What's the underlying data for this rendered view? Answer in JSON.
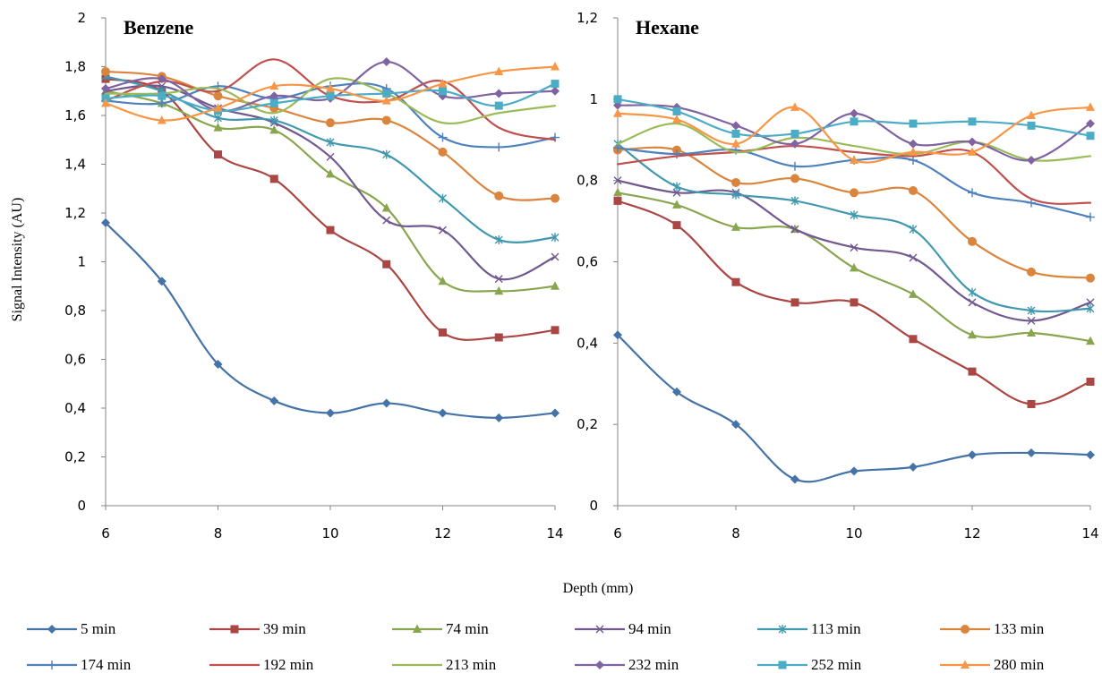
{
  "chart_data": {
    "type": "line",
    "shared": {
      "xlabel": "Depth (mm)",
      "ylabel": "Signal Intensity (AU)",
      "xlim": [
        6,
        14
      ],
      "x_ticks": [
        "6",
        "8",
        "10",
        "12",
        "14"
      ],
      "x": [
        6,
        7,
        8,
        9,
        10,
        11,
        12,
        13,
        14
      ],
      "legend_position": "bottom",
      "smooth_lines": true,
      "grid": false
    },
    "series_styles": [
      {
        "name": "5 min",
        "color": "#4572A7",
        "marker": "diamond"
      },
      {
        "name": "39 min",
        "color": "#AA4643",
        "marker": "square"
      },
      {
        "name": "74 min",
        "color": "#89A54E",
        "marker": "triangle"
      },
      {
        "name": "94 min",
        "color": "#71588F",
        "marker": "x"
      },
      {
        "name": "113 min",
        "color": "#4198AF",
        "marker": "star"
      },
      {
        "name": "133 min",
        "color": "#DB843D",
        "marker": "circle"
      },
      {
        "name": "174 min",
        "color": "#4F81BD",
        "marker": "plus"
      },
      {
        "name": "192 min",
        "color": "#C0504D",
        "marker": "none"
      },
      {
        "name": "213 min",
        "color": "#9BBB59",
        "marker": "none"
      },
      {
        "name": "232 min",
        "color": "#8064A2",
        "marker": "diamond"
      },
      {
        "name": "252 min",
        "color": "#4BACC6",
        "marker": "square"
      },
      {
        "name": "280 min",
        "color": "#F79646",
        "marker": "triangle"
      }
    ],
    "panels": [
      {
        "title": "Benzene",
        "ylim": [
          0,
          2
        ],
        "y_ticks": [
          "0",
          "0,2",
          "0,4",
          "0,6",
          "0,8",
          "1",
          "1,2",
          "1,4",
          "1,6",
          "1,8",
          "2"
        ],
        "series": [
          {
            "name": "5 min",
            "values": [
              1.16,
              0.92,
              0.58,
              0.43,
              0.38,
              0.42,
              0.38,
              0.36,
              0.38
            ]
          },
          {
            "name": "39 min",
            "values": [
              1.75,
              1.7,
              1.44,
              1.34,
              1.13,
              0.99,
              0.71,
              0.69,
              0.72
            ]
          },
          {
            "name": "74 min",
            "values": [
              1.7,
              1.65,
              1.55,
              1.54,
              1.36,
              1.22,
              0.92,
              0.88,
              0.9
            ]
          },
          {
            "name": "94 min",
            "values": [
              1.7,
              1.72,
              1.63,
              1.57,
              1.43,
              1.17,
              1.13,
              0.93,
              1.02
            ]
          },
          {
            "name": "113 min",
            "values": [
              1.76,
              1.7,
              1.59,
              1.58,
              1.49,
              1.44,
              1.26,
              1.09,
              1.1
            ]
          },
          {
            "name": "133 min",
            "values": [
              1.78,
              1.76,
              1.68,
              1.63,
              1.57,
              1.58,
              1.45,
              1.27,
              1.26
            ]
          },
          {
            "name": "174 min",
            "values": [
              1.66,
              1.65,
              1.72,
              1.67,
              1.72,
              1.71,
              1.51,
              1.47,
              1.51
            ]
          },
          {
            "name": "192 min",
            "values": [
              1.66,
              1.74,
              1.7,
              1.83,
              1.68,
              1.66,
              1.74,
              1.55,
              1.5
            ]
          },
          {
            "name": "213 min",
            "values": [
              1.69,
              1.69,
              1.71,
              1.61,
              1.75,
              1.69,
              1.57,
              1.61,
              1.64
            ]
          },
          {
            "name": "232 min",
            "values": [
              1.71,
              1.75,
              1.62,
              1.68,
              1.67,
              1.82,
              1.68,
              1.69,
              1.7
            ]
          },
          {
            "name": "252 min",
            "values": [
              1.67,
              1.68,
              1.62,
              1.65,
              1.68,
              1.69,
              1.7,
              1.64,
              1.73
            ]
          },
          {
            "name": "280 min",
            "values": [
              1.65,
              1.58,
              1.63,
              1.72,
              1.71,
              1.66,
              1.73,
              1.78,
              1.8
            ]
          }
        ]
      },
      {
        "title": "Hexane",
        "ylim": [
          0,
          1.2
        ],
        "y_ticks": [
          "0",
          "0,2",
          "0,4",
          "0,6",
          "0,8",
          "1",
          "1,2"
        ],
        "series": [
          {
            "name": "5 min",
            "values": [
              0.42,
              0.28,
              0.2,
              0.065,
              0.085,
              0.095,
              0.125,
              0.13,
              0.125
            ]
          },
          {
            "name": "39 min",
            "values": [
              0.75,
              0.69,
              0.55,
              0.5,
              0.5,
              0.41,
              0.33,
              0.25,
              0.305
            ]
          },
          {
            "name": "74 min",
            "values": [
              0.77,
              0.74,
              0.685,
              0.68,
              0.585,
              0.52,
              0.42,
              0.425,
              0.405
            ]
          },
          {
            "name": "94 min",
            "values": [
              0.8,
              0.77,
              0.77,
              0.68,
              0.635,
              0.61,
              0.5,
              0.455,
              0.5
            ]
          },
          {
            "name": "113 min",
            "values": [
              0.89,
              0.785,
              0.765,
              0.75,
              0.715,
              0.68,
              0.525,
              0.48,
              0.485
            ]
          },
          {
            "name": "133 min",
            "values": [
              0.875,
              0.875,
              0.795,
              0.805,
              0.77,
              0.775,
              0.65,
              0.575,
              0.56
            ]
          },
          {
            "name": "174 min",
            "values": [
              0.88,
              0.865,
              0.875,
              0.835,
              0.85,
              0.85,
              0.77,
              0.745,
              0.71
            ]
          },
          {
            "name": "192 min",
            "values": [
              0.84,
              0.86,
              0.87,
              0.885,
              0.87,
              0.86,
              0.87,
              0.755,
              0.745
            ]
          },
          {
            "name": "213 min",
            "values": [
              0.89,
              0.94,
              0.87,
              0.905,
              0.885,
              0.865,
              0.895,
              0.85,
              0.86
            ]
          },
          {
            "name": "232 min",
            "values": [
              0.985,
              0.98,
              0.935,
              0.89,
              0.965,
              0.89,
              0.895,
              0.85,
              0.94
            ]
          },
          {
            "name": "252 min",
            "values": [
              1.0,
              0.97,
              0.915,
              0.915,
              0.945,
              0.94,
              0.945,
              0.935,
              0.91
            ]
          },
          {
            "name": "280 min",
            "values": [
              0.965,
              0.95,
              0.89,
              0.98,
              0.85,
              0.87,
              0.87,
              0.96,
              0.98
            ]
          }
        ]
      }
    ]
  }
}
